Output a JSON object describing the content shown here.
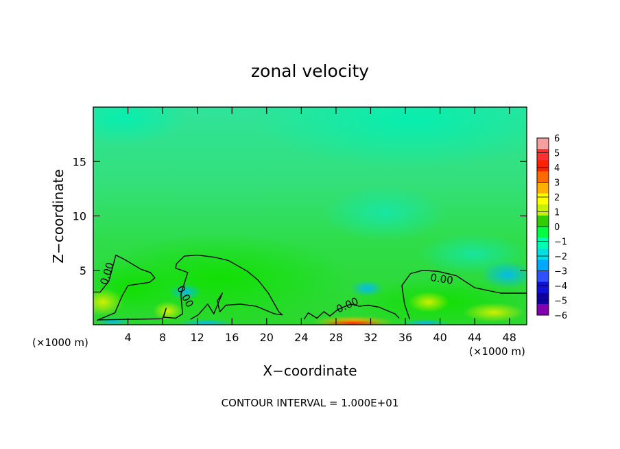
{
  "chart_data": {
    "type": "heatmap",
    "title": "zonal velocity",
    "xlabel": "X−coordinate",
    "ylabel": "Z−coordinate",
    "x_unit_left": "(×1000 m)",
    "x_unit_right": "(×1000 m)",
    "footer": "CONTOUR INTERVAL = 1.000E+01",
    "xlim": [
      0,
      50
    ],
    "ylim": [
      0,
      20
    ],
    "x_ticks": [
      4,
      8,
      12,
      16,
      20,
      24,
      28,
      32,
      36,
      40,
      44,
      48
    ],
    "x_tick_labels": [
      "4",
      "8",
      "12",
      "16",
      "20",
      "24",
      "28",
      "32",
      "36",
      "40",
      "44",
      "48"
    ],
    "y_ticks": [
      5,
      10,
      15
    ],
    "y_tick_labels": [
      "5",
      "10",
      "15"
    ],
    "grid": false,
    "colorbar": {
      "values": [
        6,
        5,
        4,
        3,
        2,
        1,
        0,
        -1,
        -2,
        -3,
        -4,
        -5,
        -6
      ],
      "labels": [
        "6",
        "5",
        "4",
        "3",
        "2",
        "1",
        "0",
        "−1",
        "−2",
        "−3",
        "−4",
        "−5",
        "−6"
      ],
      "colors": [
        "#f4a0a0",
        "#ff3030",
        "#ff2000",
        "#ff6a00",
        "#ffb000",
        "#ffff00",
        "#c8f000",
        "#33cc00",
        "#00ff40",
        "#00ffb0",
        "#00e0e0",
        "#00a8ff",
        "#3050ff",
        "#1010d8",
        "#1000a0",
        "#8000b0"
      ]
    },
    "contours": [
      {
        "level": 0.0,
        "label": "0.00",
        "points": [
          [
            0,
            3.0
          ],
          [
            0.8,
            3.0
          ],
          [
            1.8,
            4.0
          ],
          [
            2.6,
            6.4
          ],
          [
            3.6,
            6.0
          ],
          [
            5.5,
            5.1
          ],
          [
            6.6,
            4.8
          ],
          [
            7.1,
            4.3
          ],
          [
            6.5,
            3.9
          ],
          [
            4.0,
            3.6
          ],
          [
            3.3,
            2.6
          ],
          [
            2.5,
            1.1
          ],
          [
            0.4,
            0.4
          ]
        ]
      },
      {
        "level": 0.0,
        "label": "0.00",
        "points": [
          [
            0.5,
            0.45
          ],
          [
            8.0,
            0.55
          ],
          [
            8.4,
            1.5
          ],
          [
            8.1,
            0.7
          ],
          [
            9.5,
            0.6
          ],
          [
            10.3,
            1.0
          ],
          [
            10.1,
            2.8
          ],
          [
            10.9,
            4.8
          ],
          [
            9.5,
            5.2
          ],
          [
            9.6,
            5.6
          ],
          [
            10.5,
            6.3
          ],
          [
            12.0,
            6.4
          ],
          [
            14.0,
            6.2
          ],
          [
            15.6,
            5.9
          ],
          [
            17.8,
            4.9
          ],
          [
            19.0,
            4.1
          ],
          [
            20.2,
            2.9
          ],
          [
            21.4,
            1.2
          ],
          [
            21.8,
            0.9
          ],
          [
            20.9,
            1.0
          ],
          [
            18.8,
            1.7
          ],
          [
            17.0,
            1.9
          ],
          [
            15.3,
            1.8
          ],
          [
            14.6,
            1.2
          ],
          [
            14.3,
            2.2
          ],
          [
            14.9,
            2.9
          ],
          [
            13.9,
            1.0
          ],
          [
            13.2,
            1.9
          ],
          [
            12.1,
            0.9
          ],
          [
            11.2,
            0.5
          ]
        ]
      },
      {
        "level": 0.0,
        "label": "0.00",
        "points": [
          [
            24.3,
            0.5
          ],
          [
            24.8,
            1.1
          ],
          [
            25.8,
            0.6
          ],
          [
            26.6,
            1.2
          ],
          [
            27.3,
            0.8
          ],
          [
            28.2,
            1.4
          ],
          [
            29.7,
            1.9
          ],
          [
            30.7,
            1.7
          ],
          [
            31.7,
            1.8
          ],
          [
            33.0,
            1.6
          ],
          [
            34.8,
            1.0
          ],
          [
            35.3,
            0.6
          ]
        ]
      },
      {
        "level": 0.0,
        "label": "0.00",
        "points": [
          [
            36.5,
            0.5
          ],
          [
            35.9,
            1.9
          ],
          [
            35.6,
            3.6
          ],
          [
            36.6,
            4.7
          ],
          [
            38.0,
            5.0
          ],
          [
            39.8,
            4.9
          ],
          [
            41.9,
            4.5
          ],
          [
            44.0,
            3.4
          ],
          [
            47.0,
            2.9
          ],
          [
            50.0,
            2.9
          ]
        ]
      }
    ]
  }
}
